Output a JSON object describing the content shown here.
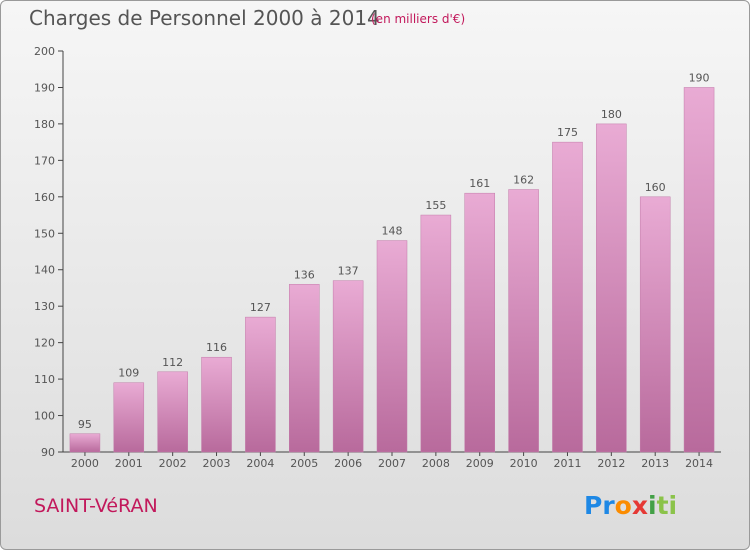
{
  "title": "Charges de Personnel 2000 à 2014",
  "subtitle": "(en milliers d'€)",
  "town": "SAINT-VéRAN",
  "logo": {
    "p1": "Pr",
    "p2": "o",
    "p3": "x",
    "p4": "i",
    "p5": "ti"
  },
  "colors": {
    "bar": "#d08ab8",
    "bar_light": "#e6a8d2",
    "accent": "#c2185b"
  },
  "chart_data": {
    "type": "bar",
    "title": "Charges de Personnel 2000 à 2014",
    "subtitle": "(en milliers d'€)",
    "categories": [
      "2000",
      "2001",
      "2002",
      "2003",
      "2004",
      "2005",
      "2006",
      "2007",
      "2008",
      "2009",
      "2010",
      "2011",
      "2012",
      "2013",
      "2014"
    ],
    "values": [
      95,
      109,
      112,
      116,
      127,
      136,
      137,
      148,
      155,
      161,
      162,
      175,
      180,
      160,
      190
    ],
    "value_labels": [
      "95",
      "109",
      "112",
      "116",
      "127",
      "136",
      "137",
      "148",
      "155",
      "161",
      "162",
      "175",
      "180",
      "160",
      "190"
    ],
    "ylim": [
      90,
      200
    ],
    "yticks": [
      90,
      100,
      110,
      120,
      130,
      140,
      150,
      160,
      170,
      180,
      190,
      200
    ],
    "ytick_labels": [
      "90",
      "100",
      "110",
      "120",
      "130",
      "140",
      "150",
      "160",
      "170",
      "180",
      "190",
      "200"
    ],
    "grid": false,
    "legend": "none"
  }
}
